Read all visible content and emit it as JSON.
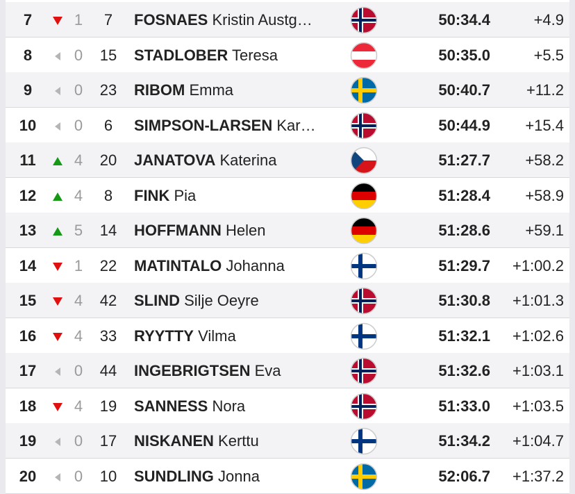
{
  "table": {
    "rows": [
      {
        "rank": 7,
        "trend": "down",
        "change": 1,
        "bib": 7,
        "surname": "FOSNAES",
        "given": "Kristin Austg…",
        "time": "50:34.4",
        "behind": "+4.9"
      },
      {
        "rank": 8,
        "trend": "same",
        "change": 0,
        "bib": 15,
        "surname": "STADLOBER",
        "given": "Teresa",
        "time": "50:35.0",
        "behind": "+5.5"
      },
      {
        "rank": 9,
        "trend": "same",
        "change": 0,
        "bib": 23,
        "surname": "RIBOM",
        "given": "Emma",
        "time": "50:40.7",
        "behind": "+11.2"
      },
      {
        "rank": 10,
        "trend": "same",
        "change": 0,
        "bib": 6,
        "surname": "SIMPSON-LARSEN",
        "given": "Kar…",
        "time": "50:44.9",
        "behind": "+15.4"
      },
      {
        "rank": 11,
        "trend": "up",
        "change": 4,
        "bib": 20,
        "surname": "JANATOVA",
        "given": "Katerina",
        "time": "51:27.7",
        "behind": "+58.2"
      },
      {
        "rank": 12,
        "trend": "up",
        "change": 4,
        "bib": 8,
        "surname": "FINK",
        "given": "Pia",
        "time": "51:28.4",
        "behind": "+58.9"
      },
      {
        "rank": 13,
        "trend": "up",
        "change": 5,
        "bib": 14,
        "surname": "HOFFMANN",
        "given": "Helen",
        "time": "51:28.6",
        "behind": "+59.1"
      },
      {
        "rank": 14,
        "trend": "down",
        "change": 1,
        "bib": 22,
        "surname": "MATINTALO",
        "given": "Johanna",
        "time": "51:29.7",
        "behind": "+1:00.2"
      },
      {
        "rank": 15,
        "trend": "down",
        "change": 4,
        "bib": 42,
        "surname": "SLIND",
        "given": "Silje Oeyre",
        "time": "51:30.8",
        "behind": "+1:01.3"
      },
      {
        "rank": 16,
        "trend": "down",
        "change": 4,
        "bib": 33,
        "surname": "RYYTTY",
        "given": "Vilma",
        "time": "51:32.1",
        "behind": "+1:02.6"
      },
      {
        "rank": 17,
        "trend": "same",
        "change": 0,
        "bib": 44,
        "surname": "INGEBRIGTSEN",
        "given": "Eva",
        "time": "51:32.6",
        "behind": "+1:03.1"
      },
      {
        "rank": 18,
        "trend": "down",
        "change": 4,
        "bib": 19,
        "surname": "SANNESS",
        "given": "Nora",
        "time": "51:33.0",
        "behind": "+1:03.5"
      },
      {
        "rank": 19,
        "trend": "same",
        "change": 0,
        "bib": 17,
        "surname": "NISKANEN",
        "given": "Kerttu",
        "time": "51:34.2",
        "behind": "+1:04.7"
      },
      {
        "rank": 20,
        "trend": "same",
        "change": 0,
        "bib": 10,
        "surname": "SUNDLING",
        "given": "Jonna",
        "time": "52:06.7",
        "behind": "+1:37.2"
      }
    ]
  }
}
